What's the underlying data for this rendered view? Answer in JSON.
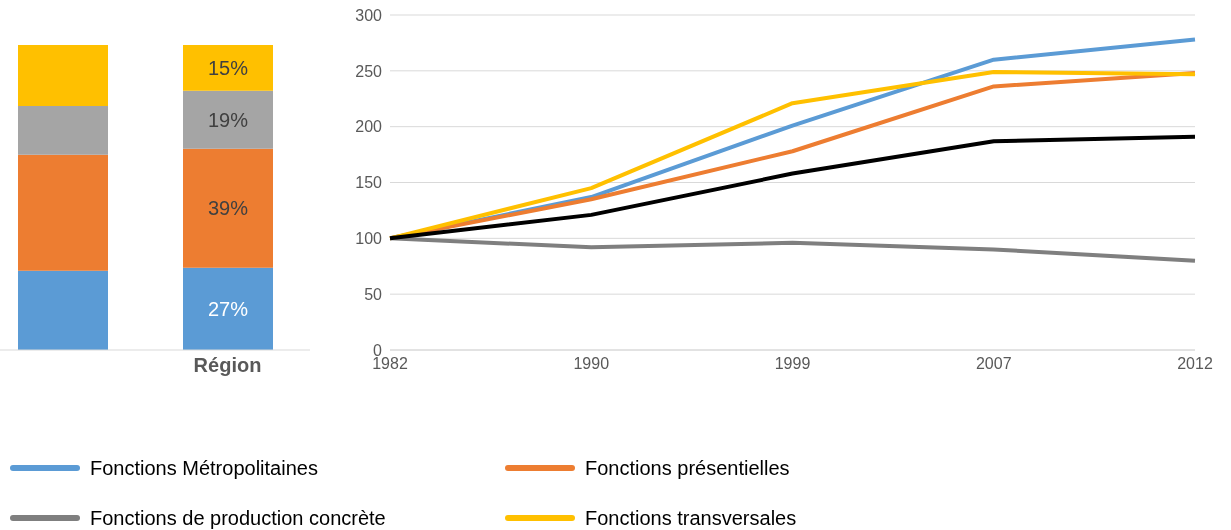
{
  "chart_data": [
    {
      "type": "bar",
      "stacked": true,
      "categories": [
        null,
        "Région"
      ],
      "series": [
        {
          "color": "#5b9bd5",
          "values": [
            26,
            27
          ],
          "value_labels": [
            null,
            "27%"
          ]
        },
        {
          "color": "#ed7d31",
          "values": [
            38,
            39
          ],
          "value_labels": [
            null,
            "39%"
          ]
        },
        {
          "color": "#a5a5a5",
          "values": [
            16,
            19
          ],
          "value_labels": [
            null,
            "19%"
          ]
        },
        {
          "color": "#ffc000",
          "values": [
            20,
            15
          ],
          "value_labels": [
            null,
            "15%"
          ]
        }
      ],
      "tick_labels": "x"
    },
    {
      "type": "line",
      "categories": [
        "1982",
        "1990",
        "1999",
        "2007",
        "2012"
      ],
      "ylim": [
        0,
        300
      ],
      "yticks": [
        0,
        50,
        100,
        150,
        200,
        250,
        300
      ],
      "grid": "y",
      "marker": "none",
      "line_style": "solid",
      "legend": "bottom",
      "series": [
        {
          "name": "Fonctions Métropolitaines",
          "color": "#5b9bd5",
          "values": [
            100,
            137,
            201,
            260,
            278
          ]
        },
        {
          "name": "Fonctions présentielles",
          "color": "#ed7d31",
          "values": [
            100,
            135,
            178,
            236,
            248
          ]
        },
        {
          "name": "Fonctions de production concrète",
          "color": "#7f7f7f",
          "values": [
            100,
            92,
            96,
            90,
            80
          ]
        },
        {
          "name": "Fonctions transversales",
          "color": "#ffc000",
          "values": [
            100,
            145,
            221,
            249,
            247
          ]
        },
        {
          "color": "#000000",
          "values": [
            100,
            121,
            158,
            187,
            191
          ]
        }
      ]
    }
  ]
}
